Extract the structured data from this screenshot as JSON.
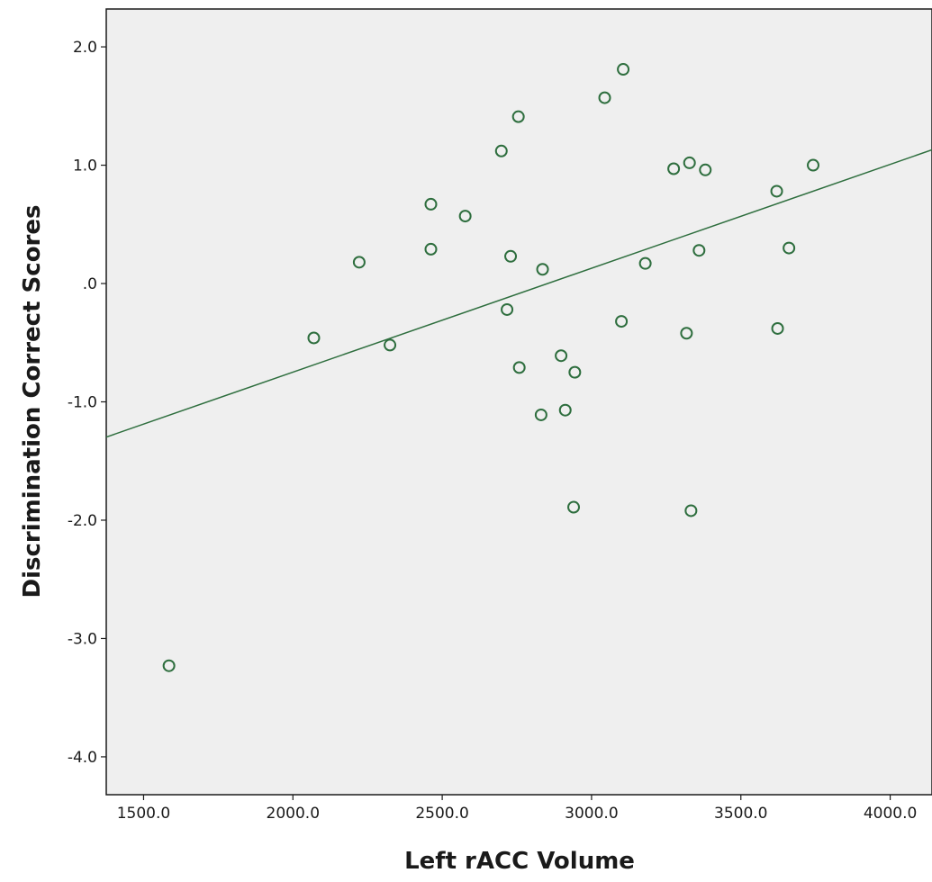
{
  "chart_data": {
    "type": "scatter",
    "title": "",
    "xlabel": "Left rACC Volume",
    "ylabel": "Discrimination Correct Scores",
    "xlim": [
      1375,
      4140
    ],
    "ylim": [
      -4.32,
      2.32
    ],
    "xticks": [
      1500,
      2000,
      2500,
      3000,
      3500,
      4000
    ],
    "xtick_labels": [
      "1500.0",
      "2000.0",
      "2500.0",
      "3000.0",
      "3500.0",
      "4000.0"
    ],
    "yticks": [
      2,
      1,
      0,
      -1,
      -2,
      -3,
      -4
    ],
    "ytick_labels": [
      "2.0",
      "1.0",
      ".0",
      "-1.0",
      "-2.0",
      "-3.0",
      "-4.0"
    ],
    "grid": false,
    "colors": {
      "plot_background": "#efefef",
      "marker": "#2e6e3e",
      "fit_line": "#2e6e3e",
      "frame": "#1a1a1a"
    },
    "series": [
      {
        "marker": "open-circle",
        "points": [
          [
            1585,
            -3.23
          ],
          [
            2070,
            -0.46
          ],
          [
            2222,
            0.18
          ],
          [
            2325,
            -0.52
          ],
          [
            2462,
            0.67
          ],
          [
            2462,
            0.29
          ],
          [
            2577,
            0.57
          ],
          [
            2698,
            1.12
          ],
          [
            2717,
            -0.22
          ],
          [
            2729,
            0.23
          ],
          [
            2755,
            1.41
          ],
          [
            2758,
            -0.71
          ],
          [
            2831,
            -1.11
          ],
          [
            2836,
            0.12
          ],
          [
            2898,
            -0.61
          ],
          [
            2912,
            -1.07
          ],
          [
            2940,
            -1.89
          ],
          [
            2944,
            -0.75
          ],
          [
            3044,
            1.57
          ],
          [
            3100,
            -0.32
          ],
          [
            3106,
            1.81
          ],
          [
            3180,
            0.17
          ],
          [
            3275,
            0.97
          ],
          [
            3318,
            -0.42
          ],
          [
            3328,
            1.02
          ],
          [
            3333,
            -1.92
          ],
          [
            3360,
            0.28
          ],
          [
            3381,
            0.96
          ],
          [
            3620,
            0.78
          ],
          [
            3623,
            -0.38
          ],
          [
            3661,
            0.3
          ],
          [
            3742,
            1.0
          ]
        ]
      }
    ],
    "fit_line": {
      "type": "linear",
      "slope": 0.000878,
      "intercept": -2.505
    }
  }
}
